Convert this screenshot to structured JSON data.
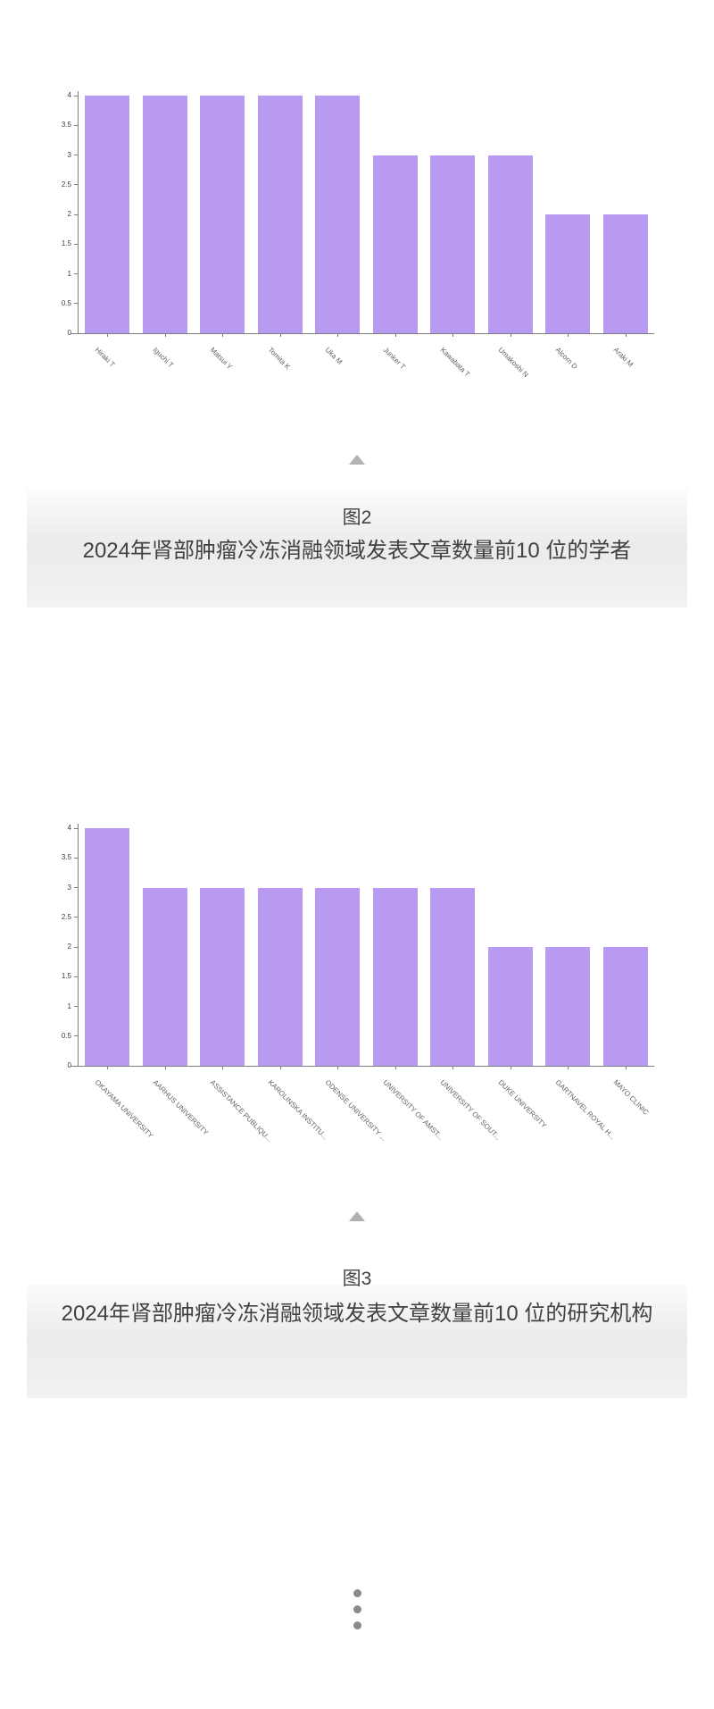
{
  "page": {
    "background": "#ffffff",
    "bar_color": "#b89af3",
    "axis_color": "#7d7d7d",
    "tick_label_color": "#3c3c3c",
    "category_label_color": "#5f5f5f",
    "caption_text_color": "#414141",
    "triangle_color": "#b1b1b1",
    "dots_color": "#8a8a8a"
  },
  "figures": [
    {
      "label": "图2",
      "title": "2024年肾部肿瘤冷冻消融领域发表文章数量前10 位的学者"
    },
    {
      "label": "图3",
      "title": "2024年肾部肿瘤冷冻消融领域发表文章数量前10 位的研究机构"
    }
  ],
  "chart_data": [
    {
      "type": "bar",
      "title": "2024年肾部肿瘤冷冻消融领域发表文章数量前10 位的学者",
      "categories": [
        "Hiraki T",
        "Iguchi T",
        "Matsui Y",
        "Tomita K",
        "Uka M",
        "Junker T",
        "Kawabata T",
        "Umakoshi N",
        "Alcorn D",
        "Araki M"
      ],
      "values": [
        4,
        4,
        4,
        4,
        4,
        3,
        3,
        3,
        2,
        2
      ],
      "xlabel": "",
      "ylabel": "",
      "ylim": [
        0,
        4
      ],
      "ytick_step": 0.5,
      "grid": false,
      "legend": "none",
      "bar_color": "#b89af3",
      "category_rotation_deg": 45
    },
    {
      "type": "bar",
      "title": "2024年肾部肿瘤冷冻消融领域发表文章数量前10 位的研究机构",
      "categories": [
        "OKAYAMA UNIVERSITY",
        "AARHUS UNIVERSITY",
        "ASSISTANCE PUBLIQU...",
        "KAROLINSKA INSTITU...",
        "ODENSE UNIVERSITY ...",
        "UNIVERSITY OF AMST...",
        "UNIVERSITY OF SOUT...",
        "DUKE UNIVERSITY",
        "GARTNAVEL ROYAL H...",
        "MAYO CLINIC"
      ],
      "values": [
        4,
        3,
        3,
        3,
        3,
        3,
        3,
        2,
        2,
        2
      ],
      "xlabel": "",
      "ylabel": "",
      "ylim": [
        0,
        4
      ],
      "ytick_step": 0.5,
      "grid": false,
      "legend": "none",
      "bar_color": "#b89af3",
      "category_rotation_deg": 45
    }
  ]
}
